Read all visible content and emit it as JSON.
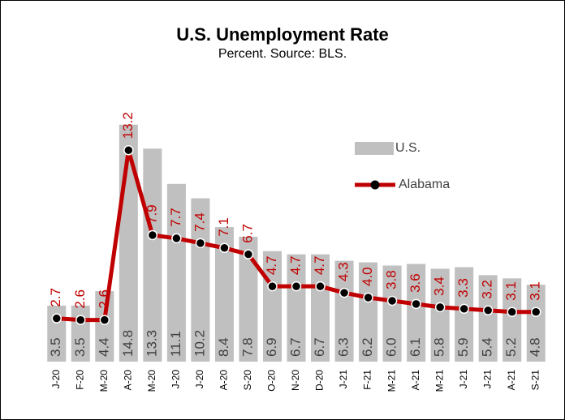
{
  "chart_data": {
    "type": "bar_line",
    "title": "U.S. Unemployment Rate",
    "subtitle": "Percent. Source: BLS.",
    "categories": [
      "J-20",
      "F-20",
      "M-20",
      "A-20",
      "M-20",
      "J-20",
      "J-20",
      "A-20",
      "S-20",
      "O-20",
      "N-20",
      "D-20",
      "J-21",
      "F-21",
      "M-21",
      "A-21",
      "M-21",
      "J-21",
      "J-21",
      "A-21",
      "S-21"
    ],
    "series": [
      {
        "name": "U.S.",
        "type": "bar",
        "color": "#c0c0c0",
        "values": [
          3.5,
          3.5,
          4.4,
          14.8,
          13.3,
          11.1,
          10.2,
          8.4,
          7.8,
          6.9,
          6.7,
          6.7,
          6.3,
          6.2,
          6.0,
          6.1,
          5.8,
          5.9,
          5.4,
          5.2,
          4.8
        ],
        "value_labels": [
          "3.5",
          "3.5",
          "4.4",
          "14.8",
          "13.3",
          "11.1",
          "10.2",
          "8.4",
          "7.8",
          "6.9",
          "6.7",
          "6.7",
          "6.3",
          "6.2",
          "6.0",
          "6.1",
          "5.8",
          "5.9",
          "5.4",
          "5.2",
          "4.8"
        ]
      },
      {
        "name": "Alabama",
        "type": "line",
        "color": "#c00000",
        "values": [
          2.7,
          2.6,
          2.6,
          13.2,
          7.9,
          7.7,
          7.4,
          7.1,
          6.7,
          4.7,
          4.7,
          4.7,
          4.3,
          4.0,
          3.8,
          3.6,
          3.4,
          3.3,
          3.2,
          3.1,
          3.1
        ],
        "value_labels": [
          "2.7",
          "2.6",
          "2.6",
          "13.2",
          "7.9",
          "7.7",
          "7.4",
          "7.1",
          "6.7",
          "4.7",
          "4.7",
          "4.7",
          "4.3",
          "4.0",
          "3.8",
          "3.6",
          "3.4",
          "3.3",
          "3.2",
          "3.1",
          "3.1"
        ]
      }
    ],
    "ylim": [
      0,
      16
    ],
    "legend": "upper right"
  }
}
